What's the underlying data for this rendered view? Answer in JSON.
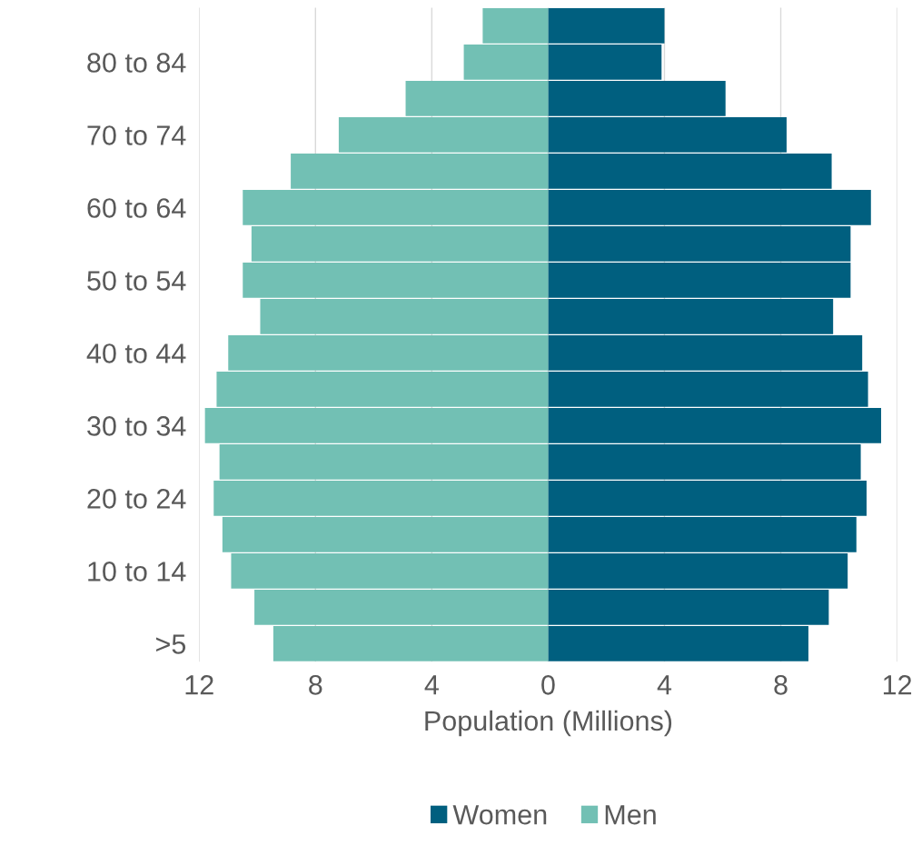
{
  "chart_data": {
    "type": "bar",
    "orientation": "horizontal",
    "xlabel": "Population (Millions)",
    "categories": [
      null,
      "80 to 84",
      null,
      "70 to 74",
      null,
      "60 to 64",
      null,
      "50 to 54",
      null,
      "40 to 44",
      null,
      "30 to 34",
      null,
      "20 to 24",
      null,
      "10 to 14",
      null,
      ">5"
    ],
    "series": [
      {
        "name": "Women",
        "color": "#005f7f",
        "values": [
          4.0,
          3.9,
          6.1,
          8.2,
          9.75,
          11.1,
          10.4,
          10.4,
          9.8,
          10.8,
          11.0,
          11.45,
          10.75,
          10.95,
          10.6,
          10.3,
          9.65,
          8.95
        ]
      },
      {
        "name": "Men",
        "color": "#72c0b4",
        "values": [
          -2.25,
          -2.9,
          -4.9,
          -7.2,
          -8.85,
          -10.5,
          -10.2,
          -10.5,
          -9.9,
          -11.0,
          -11.4,
          -11.8,
          -11.3,
          -11.5,
          -11.2,
          -10.9,
          -10.1,
          -9.45
        ]
      }
    ],
    "xlim": [
      -12,
      12
    ],
    "xticks": [
      {
        "value": -12,
        "label": "12"
      },
      {
        "value": -8,
        "label": "8"
      },
      {
        "value": -4,
        "label": "4"
      },
      0,
      4,
      8,
      12
    ],
    "stacked": true,
    "grid": "x",
    "legend": "bottom"
  }
}
